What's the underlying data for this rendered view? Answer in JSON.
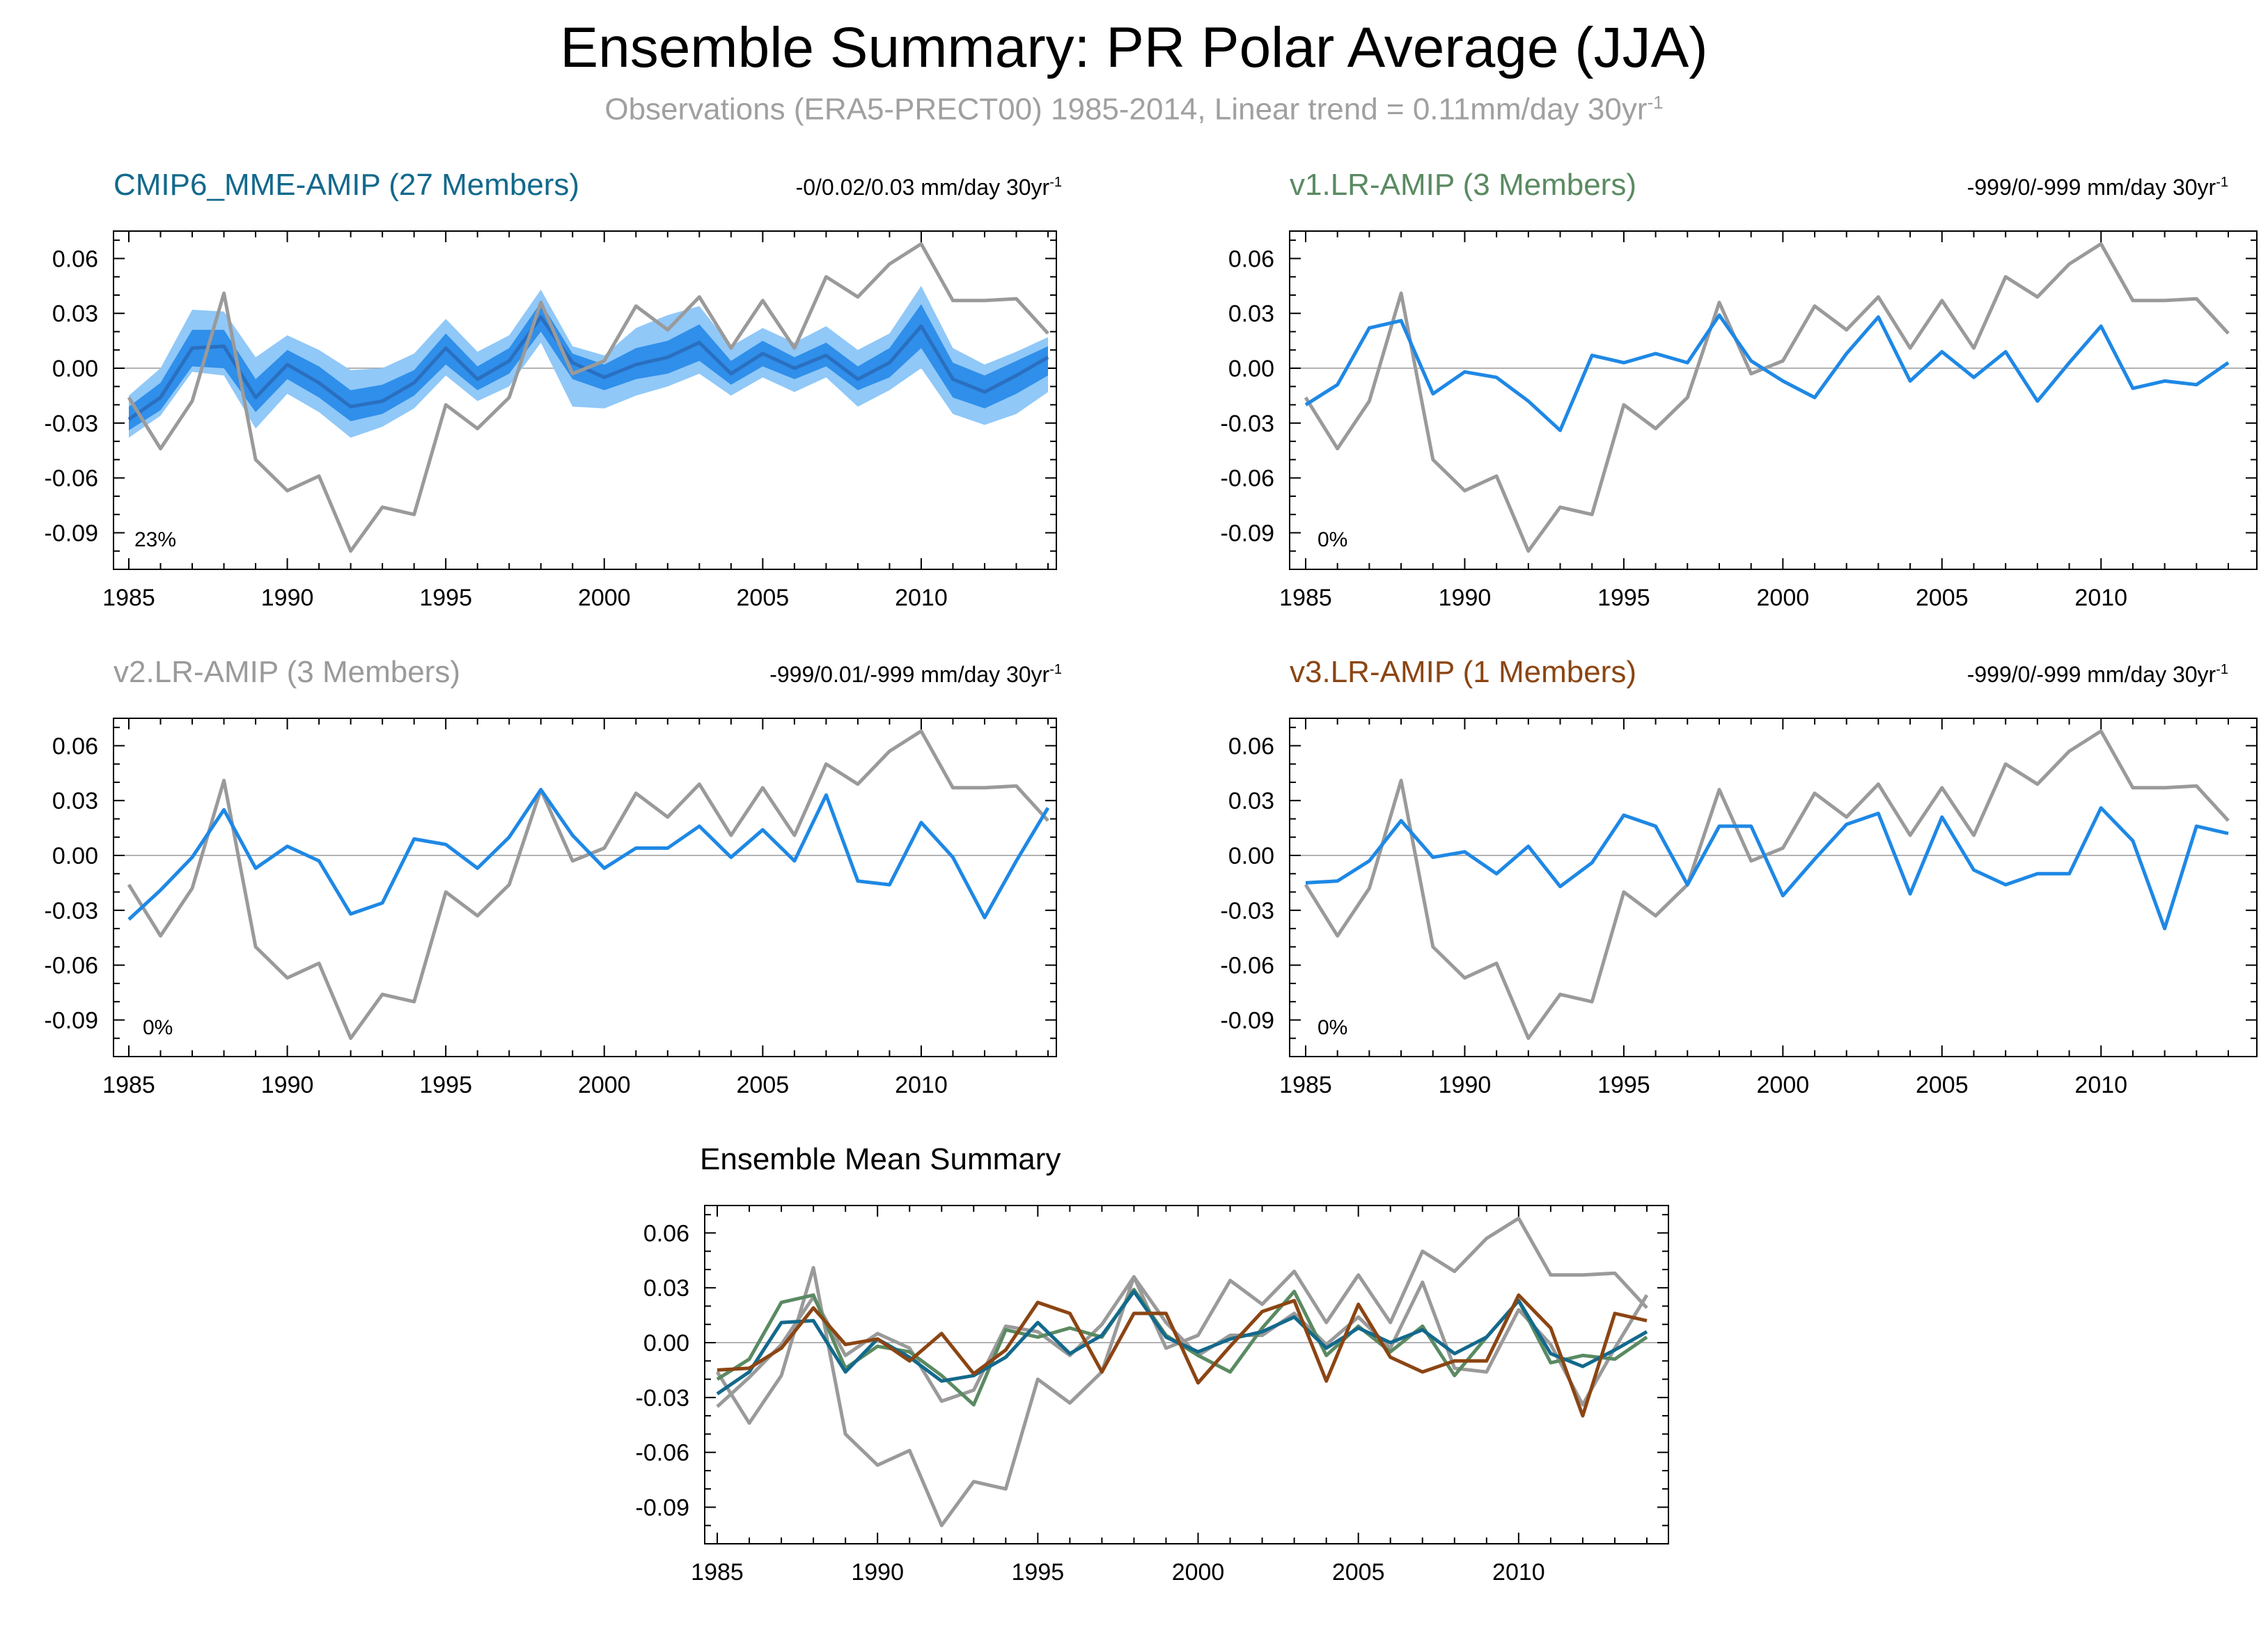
{
  "title": "Ensemble Summary: PR Polar Average (JJA)",
  "subtitle": {
    "text": "Observations (ERA5-PRECT00) 1985-2014, Linear trend = 0.11mm/day 30yr",
    "superscript": "-1"
  },
  "colors": {
    "obs": "#9a9a9a",
    "model": "#1e88e5",
    "band_outer": "#90c8f8",
    "band_inner": "#2f8fea",
    "mme_title": "#13698c",
    "v1_title": "#5a8a62",
    "v2_title": "#9a9a9a",
    "v3_title": "#8b4513",
    "summary_mme": "#13698c",
    "summary_v1": "#5a8a62",
    "summary_v2": "#9a9a9a",
    "summary_v3": "#8b4513"
  },
  "chart_data": [
    {
      "id": "mme",
      "type": "line",
      "title": "CMIP6_MME-AMIP (27 Members)",
      "trend_text": "-0/0.02/0.03 mm/day 30yr",
      "trend_superscript": "-1",
      "percent_label": "23%",
      "xlim": [
        1985,
        2014
      ],
      "ylim": [
        -0.11,
        0.075
      ],
      "xticks": [
        1985,
        1990,
        1995,
        2000,
        2005,
        2010
      ],
      "yticks": [
        0.06,
        0.03,
        0.0,
        -0.03,
        -0.06,
        -0.09
      ],
      "ytick_labels": [
        "0.06",
        "0.03",
        "0.00",
        "-0.03",
        "-0.06",
        "-0.09"
      ],
      "x": [
        1985,
        1986,
        1987,
        1988,
        1989,
        1990,
        1991,
        1992,
        1993,
        1994,
        1995,
        1996,
        1997,
        1998,
        1999,
        2000,
        2001,
        2002,
        2003,
        2004,
        2005,
        2006,
        2007,
        2008,
        2009,
        2010,
        2011,
        2012,
        2013,
        2014
      ],
      "obs": [
        -0.016,
        -0.044,
        -0.018,
        0.041,
        -0.05,
        -0.067,
        -0.059,
        -0.1,
        -0.076,
        -0.08,
        -0.02,
        -0.033,
        -0.016,
        0.036,
        -0.003,
        0.004,
        0.034,
        0.021,
        0.039,
        0.011,
        0.037,
        0.011,
        0.05,
        0.039,
        0.057,
        0.068,
        0.037,
        0.037,
        0.038,
        0.019
      ],
      "mean": [
        -0.028,
        -0.016,
        0.011,
        0.012,
        -0.016,
        0.002,
        -0.008,
        -0.021,
        -0.018,
        -0.008,
        0.011,
        -0.006,
        0.004,
        0.028,
        0.003,
        -0.005,
        0.002,
        0.006,
        0.014,
        -0.003,
        0.008,
        0.0,
        0.007,
        -0.006,
        0.003,
        0.023,
        -0.006,
        -0.013,
        -0.004,
        0.006
      ],
      "band_outer_lo": [
        -0.038,
        -0.026,
        -0.002,
        -0.004,
        -0.033,
        -0.014,
        -0.024,
        -0.038,
        -0.032,
        -0.022,
        -0.004,
        -0.018,
        -0.01,
        0.014,
        -0.021,
        -0.022,
        -0.015,
        -0.01,
        -0.003,
        -0.015,
        -0.005,
        -0.013,
        -0.005,
        -0.021,
        -0.012,
        0.0,
        -0.025,
        -0.031,
        -0.025,
        -0.013
      ],
      "band_outer_hi": [
        -0.015,
        0.0,
        0.032,
        0.031,
        0.006,
        0.018,
        0.01,
        -0.001,
        0.0,
        0.008,
        0.027,
        0.009,
        0.018,
        0.043,
        0.012,
        0.007,
        0.022,
        0.029,
        0.034,
        0.012,
        0.022,
        0.014,
        0.023,
        0.01,
        0.019,
        0.045,
        0.011,
        0.002,
        0.009,
        0.017
      ],
      "band_inner_lo": [
        -0.034,
        -0.023,
        0.001,
        0.0,
        -0.024,
        -0.006,
        -0.016,
        -0.029,
        -0.025,
        -0.015,
        0.002,
        -0.012,
        -0.003,
        0.02,
        -0.006,
        -0.012,
        -0.006,
        -0.003,
        0.004,
        -0.009,
        0.001,
        -0.006,
        0.001,
        -0.012,
        -0.005,
        0.011,
        -0.016,
        -0.022,
        -0.014,
        -0.004
      ],
      "band_inner_hi": [
        -0.021,
        -0.008,
        0.021,
        0.021,
        -0.006,
        0.01,
        0.001,
        -0.012,
        -0.009,
        -0.001,
        0.019,
        0.001,
        0.011,
        0.036,
        0.008,
        0.002,
        0.011,
        0.015,
        0.024,
        0.004,
        0.015,
        0.006,
        0.014,
        0.001,
        0.011,
        0.035,
        0.003,
        -0.004,
        0.004,
        0.012
      ]
    },
    {
      "id": "v1",
      "type": "line",
      "title": "v1.LR-AMIP (3 Members)",
      "trend_text": "-999/0/-999 mm/day 30yr",
      "trend_superscript": "-1",
      "percent_label": "0%",
      "xlim": [
        1985,
        2014
      ],
      "ylim": [
        -0.11,
        0.075
      ],
      "xticks": [
        1985,
        1990,
        1995,
        2000,
        2005,
        2010
      ],
      "yticks": [
        0.06,
        0.03,
        0.0,
        -0.03,
        -0.06,
        -0.09
      ],
      "ytick_labels": [
        "0.06",
        "0.03",
        "0.00",
        "-0.03",
        "-0.06",
        "-0.09"
      ],
      "x": [
        1985,
        1986,
        1987,
        1988,
        1989,
        1990,
        1991,
        1992,
        1993,
        1994,
        1995,
        1996,
        1997,
        1998,
        1999,
        2000,
        2001,
        2002,
        2003,
        2004,
        2005,
        2006,
        2007,
        2008,
        2009,
        2010,
        2011,
        2012,
        2013,
        2014
      ],
      "obs": [
        -0.016,
        -0.044,
        -0.018,
        0.041,
        -0.05,
        -0.067,
        -0.059,
        -0.1,
        -0.076,
        -0.08,
        -0.02,
        -0.033,
        -0.016,
        0.036,
        -0.003,
        0.004,
        0.034,
        0.021,
        0.039,
        0.011,
        0.037,
        0.011,
        0.05,
        0.039,
        0.057,
        0.068,
        0.037,
        0.037,
        0.038,
        0.019
      ],
      "model": [
        -0.02,
        -0.009,
        0.022,
        0.026,
        -0.014,
        -0.002,
        -0.005,
        -0.018,
        -0.034,
        0.007,
        0.003,
        0.008,
        0.003,
        0.029,
        0.004,
        -0.007,
        -0.016,
        0.008,
        0.028,
        -0.007,
        0.009,
        -0.005,
        0.009,
        -0.018,
        0.003,
        0.023,
        -0.011,
        -0.007,
        -0.009,
        0.003
      ]
    },
    {
      "id": "v2",
      "type": "line",
      "title": "v2.LR-AMIP (3 Members)",
      "trend_text": "-999/0.01/-999 mm/day 30yr",
      "trend_superscript": "-1",
      "percent_label": "0%",
      "xlim": [
        1985,
        2014
      ],
      "ylim": [
        -0.11,
        0.075
      ],
      "xticks": [
        1985,
        1990,
        1995,
        2000,
        2005,
        2010
      ],
      "yticks": [
        0.06,
        0.03,
        0.0,
        -0.03,
        -0.06,
        -0.09
      ],
      "ytick_labels": [
        "0.06",
        "0.03",
        "0.00",
        "-0.03",
        "-0.06",
        "-0.09"
      ],
      "x": [
        1985,
        1986,
        1987,
        1988,
        1989,
        1990,
        1991,
        1992,
        1993,
        1994,
        1995,
        1996,
        1997,
        1998,
        1999,
        2000,
        2001,
        2002,
        2003,
        2004,
        2005,
        2006,
        2007,
        2008,
        2009,
        2010,
        2011,
        2012,
        2013,
        2014
      ],
      "obs": [
        -0.016,
        -0.044,
        -0.018,
        0.041,
        -0.05,
        -0.067,
        -0.059,
        -0.1,
        -0.076,
        -0.08,
        -0.02,
        -0.033,
        -0.016,
        0.036,
        -0.003,
        0.004,
        0.034,
        0.021,
        0.039,
        0.011,
        0.037,
        0.011,
        0.05,
        0.039,
        0.057,
        0.068,
        0.037,
        0.037,
        0.038,
        0.019
      ],
      "model": [
        -0.035,
        -0.019,
        -0.001,
        0.025,
        -0.007,
        0.005,
        -0.003,
        -0.032,
        -0.026,
        0.009,
        0.006,
        -0.007,
        0.01,
        0.036,
        0.011,
        -0.007,
        0.004,
        0.004,
        0.016,
        -0.001,
        0.014,
        -0.003,
        0.033,
        -0.014,
        -0.016,
        0.018,
        -0.001,
        -0.034,
        -0.003,
        0.026
      ]
    },
    {
      "id": "v3",
      "type": "line",
      "title": "v3.LR-AMIP (1 Members)",
      "trend_text": "-999/0/-999 mm/day 30yr",
      "trend_superscript": "-1",
      "percent_label": "0%",
      "xlim": [
        1985,
        2014
      ],
      "ylim": [
        -0.11,
        0.075
      ],
      "xticks": [
        1985,
        1990,
        1995,
        2000,
        2005,
        2010
      ],
      "yticks": [
        0.06,
        0.03,
        0.0,
        -0.03,
        -0.06,
        -0.09
      ],
      "ytick_labels": [
        "0.06",
        "0.03",
        "0.00",
        "-0.03",
        "-0.06",
        "-0.09"
      ],
      "x": [
        1985,
        1986,
        1987,
        1988,
        1989,
        1990,
        1991,
        1992,
        1993,
        1994,
        1995,
        1996,
        1997,
        1998,
        1999,
        2000,
        2001,
        2002,
        2003,
        2004,
        2005,
        2006,
        2007,
        2008,
        2009,
        2010,
        2011,
        2012,
        2013,
        2014
      ],
      "obs": [
        -0.016,
        -0.044,
        -0.018,
        0.041,
        -0.05,
        -0.067,
        -0.059,
        -0.1,
        -0.076,
        -0.08,
        -0.02,
        -0.033,
        -0.016,
        0.036,
        -0.003,
        0.004,
        0.034,
        0.021,
        0.039,
        0.011,
        0.037,
        0.011,
        0.05,
        0.039,
        0.057,
        0.068,
        0.037,
        0.037,
        0.038,
        0.019
      ],
      "model": [
        -0.015,
        -0.014,
        -0.003,
        0.019,
        -0.001,
        0.002,
        -0.01,
        0.005,
        -0.017,
        -0.004,
        0.022,
        0.016,
        -0.016,
        0.016,
        0.016,
        -0.022,
        -0.002,
        0.017,
        0.023,
        -0.021,
        0.021,
        -0.008,
        -0.016,
        -0.01,
        -0.01,
        0.026,
        0.008,
        -0.04,
        0.016,
        0.012
      ]
    },
    {
      "id": "summary",
      "type": "line",
      "title": "Ensemble Mean Summary",
      "xlim": [
        1985,
        2014
      ],
      "ylim": [
        -0.11,
        0.075
      ],
      "xticks": [
        1985,
        1990,
        1995,
        2000,
        2005,
        2010
      ],
      "yticks": [
        0.06,
        0.03,
        0.0,
        -0.03,
        -0.06,
        -0.09
      ],
      "ytick_labels": [
        "0.06",
        "0.03",
        "0.00",
        "-0.03",
        "-0.06",
        "-0.09"
      ],
      "x": [
        1985,
        1986,
        1987,
        1988,
        1989,
        1990,
        1991,
        1992,
        1993,
        1994,
        1995,
        1996,
        1997,
        1998,
        1999,
        2000,
        2001,
        2002,
        2003,
        2004,
        2005,
        2006,
        2007,
        2008,
        2009,
        2010,
        2011,
        2012,
        2013,
        2014
      ],
      "series": [
        {
          "color_key": "obs",
          "values": [
            -0.016,
            -0.044,
            -0.018,
            0.041,
            -0.05,
            -0.067,
            -0.059,
            -0.1,
            -0.076,
            -0.08,
            -0.02,
            -0.033,
            -0.016,
            0.036,
            -0.003,
            0.004,
            0.034,
            0.021,
            0.039,
            0.011,
            0.037,
            0.011,
            0.05,
            0.039,
            0.057,
            0.068,
            0.037,
            0.037,
            0.038,
            0.019
          ]
        },
        {
          "color_key": "summary_v2",
          "values": [
            -0.035,
            -0.019,
            -0.001,
            0.025,
            -0.007,
            0.005,
            -0.003,
            -0.032,
            -0.026,
            0.009,
            0.006,
            -0.007,
            0.01,
            0.036,
            0.011,
            -0.007,
            0.004,
            0.004,
            0.016,
            -0.001,
            0.014,
            -0.003,
            0.033,
            -0.014,
            -0.016,
            0.018,
            -0.001,
            -0.034,
            -0.003,
            0.026
          ]
        },
        {
          "color_key": "summary_v1",
          "values": [
            -0.02,
            -0.009,
            0.022,
            0.026,
            -0.014,
            -0.002,
            -0.005,
            -0.018,
            -0.034,
            0.007,
            0.003,
            0.008,
            0.003,
            0.029,
            0.004,
            -0.007,
            -0.016,
            0.008,
            0.028,
            -0.007,
            0.009,
            -0.005,
            0.009,
            -0.018,
            0.003,
            0.023,
            -0.011,
            -0.007,
            -0.009,
            0.003
          ]
        },
        {
          "color_key": "summary_mme",
          "values": [
            -0.028,
            -0.016,
            0.011,
            0.012,
            -0.016,
            0.002,
            -0.008,
            -0.021,
            -0.018,
            -0.008,
            0.011,
            -0.006,
            0.004,
            0.028,
            0.003,
            -0.005,
            0.002,
            0.006,
            0.014,
            -0.003,
            0.008,
            0.0,
            0.007,
            -0.006,
            0.003,
            0.023,
            -0.006,
            -0.013,
            -0.004,
            0.006
          ]
        },
        {
          "color_key": "summary_v3",
          "values": [
            -0.015,
            -0.014,
            -0.003,
            0.019,
            -0.001,
            0.002,
            -0.01,
            0.005,
            -0.017,
            -0.004,
            0.022,
            0.016,
            -0.016,
            0.016,
            0.016,
            -0.022,
            -0.002,
            0.017,
            0.023,
            -0.021,
            0.021,
            -0.008,
            -0.016,
            -0.01,
            -0.01,
            0.026,
            0.008,
            -0.04,
            0.016,
            0.012
          ]
        }
      ]
    }
  ]
}
